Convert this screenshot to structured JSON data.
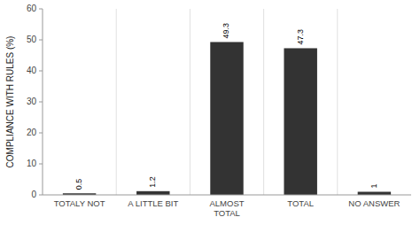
{
  "chart_data": {
    "type": "bar",
    "categories": [
      "TOTALY NOT",
      "A LITTLE BIT",
      "ALMOST\nTOTAL",
      "TOTAL",
      "NO ANSWER"
    ],
    "values": [
      0.5,
      1.2,
      49.3,
      47.3,
      1.0
    ],
    "color": "#333333",
    "ylabel": "COMPLIANCE WITH RULES (%)",
    "ylim": [
      0,
      60
    ],
    "yticks": [
      0,
      10,
      20,
      30,
      40,
      50,
      60
    ],
    "grid": false,
    "data_labels": true
  }
}
